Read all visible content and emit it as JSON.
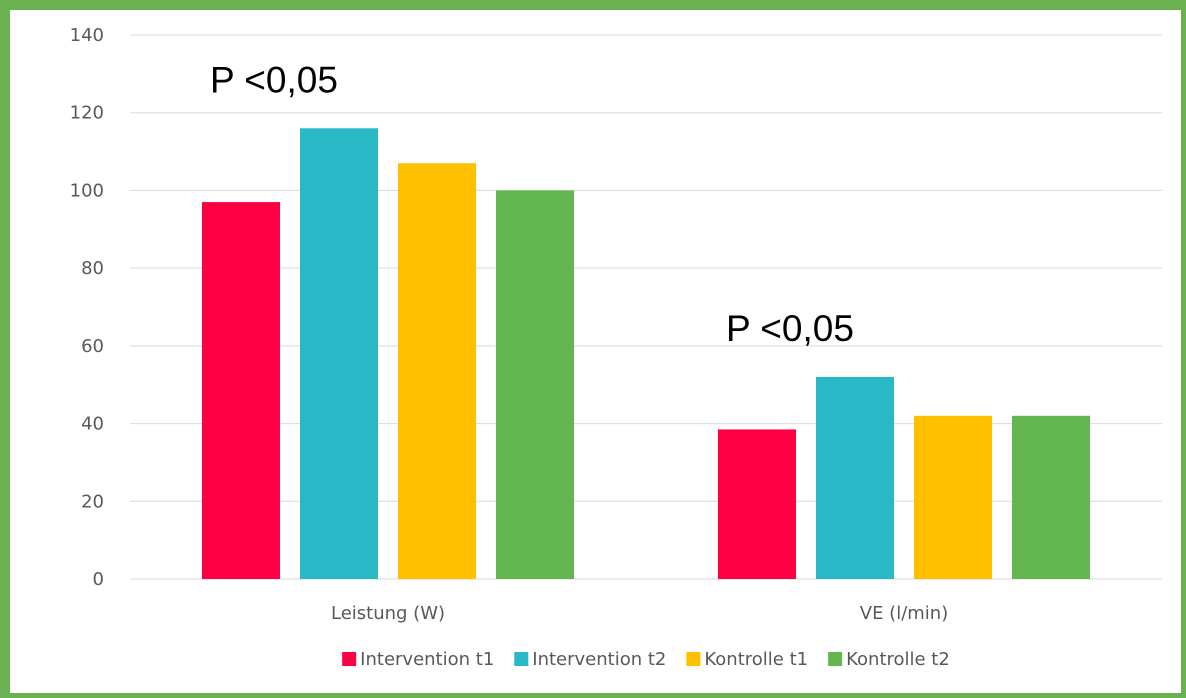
{
  "chart_data": {
    "type": "bar",
    "title": "",
    "xlabel": "",
    "ylabel": "",
    "categories": [
      "Leistung (W)",
      "VE (l/min)"
    ],
    "series": [
      {
        "name": "Intervention t1",
        "color": "#ff0045",
        "values": [
          97,
          38.5
        ]
      },
      {
        "name": "Intervention t2",
        "color": "#29b8c6",
        "values": [
          116,
          52
        ]
      },
      {
        "name": "Kontrolle t1",
        "color": "#ffc000",
        "values": [
          107,
          42
        ]
      },
      {
        "name": "Kontrolle t2",
        "color": "#64b650",
        "values": [
          100,
          42
        ]
      }
    ],
    "ylim": [
      0,
      140
    ],
    "yticks": [
      0,
      20,
      40,
      60,
      80,
      100,
      120,
      140
    ],
    "grid": true,
    "legend_position": "bottom",
    "annotations": [
      {
        "text": "P <0,05",
        "category": "Leistung (W)"
      },
      {
        "text": "P <0,05",
        "category": "VE (l/min)"
      }
    ]
  },
  "frame_color": "#6ab150",
  "grid_color": "#d9d9d9"
}
